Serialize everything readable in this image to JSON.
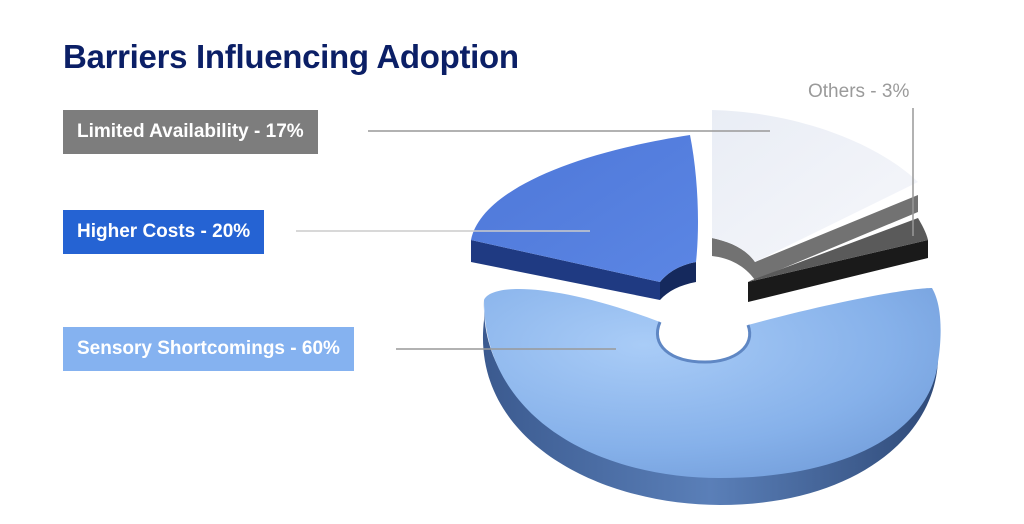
{
  "chart_data": {
    "type": "pie",
    "title": "Barriers Influencing Adoption",
    "slices": [
      {
        "label": "Sensory Shortcomings - 60%",
        "name": "Sensory Shortcomings",
        "value": 60,
        "color": "#86b1ea"
      },
      {
        "label": "Higher Costs - 20%",
        "name": "Higher Costs",
        "value": 20,
        "color": "#4a72d6"
      },
      {
        "label": "Limited Availability - 17%",
        "name": "Limited Availability",
        "value": 17,
        "color": "#eceff6"
      },
      {
        "label": "Others - 3%",
        "name": "Others",
        "value": 3,
        "color": "#4d4d4d"
      }
    ],
    "label_colors": {
      "sensory": "#85b2f0",
      "costs": "#2563d3",
      "availability": "#7d7d7d",
      "others": "#9a9a9a"
    }
  }
}
